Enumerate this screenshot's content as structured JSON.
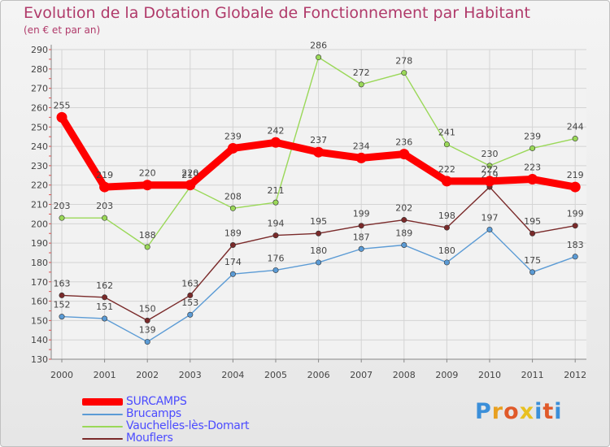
{
  "header": {
    "title": "Evolution de la Dotation Globale de Fonctionnement par Habitant",
    "subtitle": "(en € et par an)"
  },
  "logo": {
    "text": "Proxiti",
    "colors": [
      "#3b8fd9",
      "#e8a020",
      "#e05a2a",
      "#e8c020",
      "#3b8fd9",
      "#e05a2a",
      "#3b8fd9"
    ]
  },
  "chart_data": {
    "type": "line",
    "x": [
      "2000",
      "2001",
      "2002",
      "2003",
      "2004",
      "2005",
      "2006",
      "2007",
      "2008",
      "2009",
      "2010",
      "2011",
      "2012"
    ],
    "ylim": [
      130,
      290
    ],
    "yticks": [
      130,
      140,
      150,
      160,
      170,
      180,
      190,
      200,
      210,
      220,
      230,
      240,
      250,
      260,
      270,
      280,
      290
    ],
    "grid": true,
    "legend_position": "bottom-left",
    "series": [
      {
        "name": "Vauchelles-lès-Domart",
        "color": "#9ad858",
        "values": [
          203,
          203,
          188,
          219,
          208,
          211,
          286,
          272,
          278,
          241,
          230,
          239,
          244
        ]
      },
      {
        "name": "Brucamps",
        "color": "#5b9bd5",
        "values": [
          152,
          151,
          139,
          153,
          174,
          176,
          180,
          187,
          189,
          180,
          197,
          175,
          183
        ]
      },
      {
        "name": "Mouflers",
        "color": "#7a2a2a",
        "values": [
          163,
          162,
          150,
          163,
          189,
          194,
          195,
          199,
          202,
          198,
          219,
          195,
          199
        ]
      },
      {
        "name": "SURCAMPS",
        "color": "#ff0000",
        "values": [
          255,
          219,
          220,
          220,
          239,
          242,
          237,
          234,
          236,
          222,
          222,
          223,
          219
        ]
      }
    ]
  }
}
